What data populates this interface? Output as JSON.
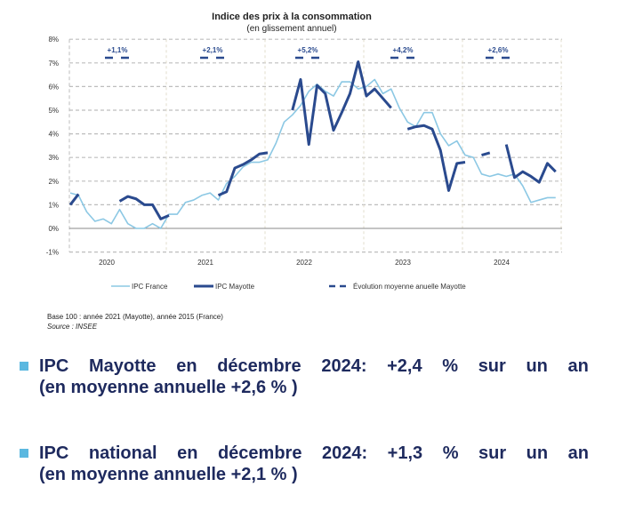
{
  "chart_data": {
    "type": "line",
    "title": "Indice des prix à la consommation",
    "subtitle": "(en glissement annuel)",
    "ylim": [
      -1,
      8
    ],
    "yticks": [
      "-1%",
      "0%",
      "1%",
      "2%",
      "3%",
      "4%",
      "5%",
      "6%",
      "7%",
      "8%"
    ],
    "years": [
      "2020",
      "2021",
      "2022",
      "2023",
      "2024"
    ],
    "x_unit": "month (Jan 2020 - Dec 2024)",
    "grid": true,
    "legend_position": "bottom",
    "series": [
      {
        "name": "IPC France",
        "color": "#8cc8e4",
        "values": [
          1.5,
          1.4,
          0.7,
          0.3,
          0.4,
          0.2,
          0.8,
          0.2,
          0.0,
          0.0,
          0.2,
          0.0,
          0.6,
          0.6,
          1.1,
          1.2,
          1.4,
          1.5,
          1.2,
          1.9,
          2.2,
          2.6,
          2.8,
          2.8,
          2.9,
          3.6,
          4.5,
          4.8,
          5.2,
          5.8,
          6.1,
          5.8,
          5.6,
          6.2,
          6.2,
          5.9,
          6.0,
          6.3,
          5.7,
          5.9,
          5.1,
          4.5,
          4.3,
          4.9,
          4.9,
          4.0,
          3.5,
          3.7,
          3.1,
          3.0,
          2.3,
          2.2,
          2.3,
          2.2,
          2.3,
          1.8,
          1.1,
          1.2,
          1.3,
          1.3
        ]
      },
      {
        "name": "IPC Mayotte",
        "color": "#2a4a8e",
        "values": [
          1.0,
          1.45,
          null,
          null,
          null,
          null,
          1.15,
          1.35,
          1.25,
          1.0,
          1.0,
          0.4,
          0.55,
          null,
          null,
          null,
          null,
          null,
          1.4,
          1.55,
          2.55,
          2.7,
          2.9,
          3.15,
          3.2,
          null,
          null,
          5.0,
          6.3,
          3.55,
          6.05,
          5.7,
          4.15,
          4.9,
          5.7,
          7.05,
          5.6,
          5.9,
          5.5,
          5.1,
          null,
          4.2,
          4.3,
          4.35,
          4.2,
          3.3,
          1.6,
          2.75,
          2.8,
          null,
          3.1,
          3.2,
          null,
          3.55,
          2.15,
          2.4,
          2.2,
          1.95,
          2.75,
          2.4
        ]
      }
    ],
    "annual_average": {
      "name": "Évolution moyenne anuelle Mayotte",
      "labels": [
        "+1,1%",
        "+2,1%",
        "+5,2%",
        "+4,2%",
        "+2,6%"
      ]
    }
  },
  "notes": {
    "base": "Base 100 : année 2021 (Mayotte), année 2015 (France)",
    "source": "Source : INSEE"
  },
  "bullets": [
    {
      "line1": [
        "IPC",
        "Mayotte",
        "en",
        "décembre",
        "2024:",
        "+2,4",
        "%",
        "sur",
        "un",
        "an"
      ],
      "line2": "(en moyenne annuelle +2,6 % )"
    },
    {
      "line1": [
        "IPC",
        "national",
        "en",
        "décembre",
        "2024:",
        "+1,3",
        "%",
        "sur",
        "un",
        "an"
      ],
      "line2": "(en moyenne annuelle +2,1 % )"
    }
  ]
}
